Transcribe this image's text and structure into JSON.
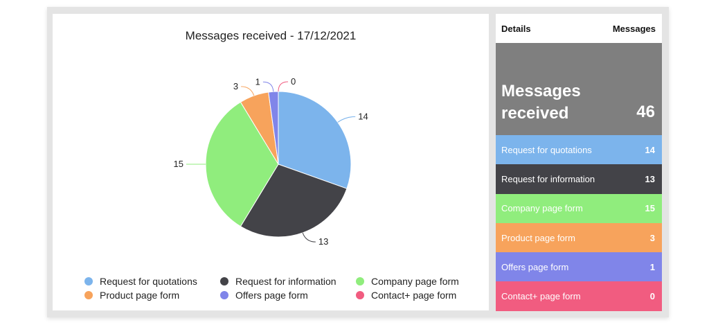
{
  "chart_data": {
    "type": "pie",
    "title": "Messages received - 17/12/2021",
    "slices": [
      {
        "label": "Request for quotations",
        "value": 14,
        "color": "#7cb4ec"
      },
      {
        "label": "Request for information",
        "value": 13,
        "color": "#434348"
      },
      {
        "label": "Company page form",
        "value": 15,
        "color": "#90ed7d"
      },
      {
        "label": "Product page form",
        "value": 3,
        "color": "#f7a35c"
      },
      {
        "label": "Offers page form",
        "value": 1,
        "color": "#8085e9"
      },
      {
        "label": "Contact+ page form",
        "value": 0,
        "color": "#f15c80"
      }
    ],
    "legend_position": "bottom"
  },
  "details": {
    "header_left": "Details",
    "header_right": "Messages",
    "total_label": "Messages received",
    "total_value": "46",
    "total_color": "#7f7f7f"
  }
}
